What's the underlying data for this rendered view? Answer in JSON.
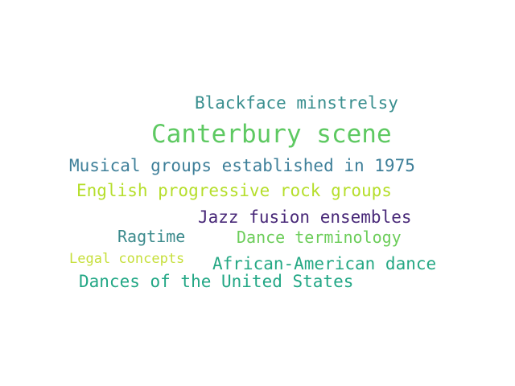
{
  "words": [
    {
      "text": "Blackface minstrelsy",
      "color": "#3a8f8f"
    },
    {
      "text": "Canterbury scene",
      "color": "#5ec962"
    },
    {
      "text": "Musical groups established in 1975",
      "color": "#3e7f99"
    },
    {
      "text": "English progressive rock groups",
      "color": "#b5de2b"
    },
    {
      "text": "Jazz fusion ensembles",
      "color": "#482878"
    },
    {
      "text": "Ragtime",
      "color": "#3b8a8c"
    },
    {
      "text": "Dance terminology",
      "color": "#6ccd5a"
    },
    {
      "text": "Legal concepts",
      "color": "#c6df3a"
    },
    {
      "text": "African-American dance",
      "color": "#25a884"
    },
    {
      "text": "Dances of the United States",
      "color": "#22a785"
    }
  ]
}
